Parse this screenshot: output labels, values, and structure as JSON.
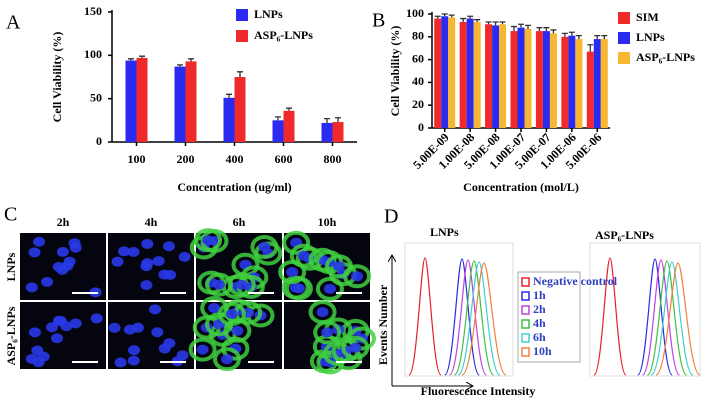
{
  "chart_data": [
    {
      "type": "bar",
      "panel": "A",
      "ylabel": "Cell Viability (%)",
      "xlabel": "Concentration (ug/ml)",
      "categories": [
        "100",
        "200",
        "400",
        "600",
        "800"
      ],
      "series": [
        {
          "name": "LNPs",
          "color": "#2a2af0",
          "values": [
            94,
            87,
            51,
            25,
            22
          ],
          "errors": [
            2,
            2,
            4,
            4,
            5
          ]
        },
        {
          "name": "ASP₆-LNPs",
          "color": "#f02a2a",
          "values": [
            97,
            93,
            75,
            36,
            23
          ],
          "errors": [
            2,
            3,
            6,
            3,
            5
          ]
        }
      ],
      "ylim": [
        0,
        150
      ],
      "yticks": [
        0,
        50,
        100,
        150
      ]
    },
    {
      "type": "bar",
      "panel": "B",
      "ylabel": "Cell Viability (%)",
      "xlabel": "Concentration (mol/L)",
      "categories": [
        "5.00E-09",
        "1.00E-08",
        "5.00E-08",
        "1.00E-07",
        "5.00E-07",
        "1.00E-06",
        "5.00E-06"
      ],
      "series": [
        {
          "name": "SIM",
          "color": "#f02a2a",
          "values": [
            96,
            93,
            91,
            85,
            85,
            80,
            67
          ],
          "errors": [
            2,
            3,
            2,
            4,
            3,
            3,
            6
          ]
        },
        {
          "name": "LNPs",
          "color": "#2a2af0",
          "values": [
            98,
            96,
            90,
            88,
            85,
            81,
            78
          ],
          "errors": [
            2,
            2,
            3,
            3,
            3,
            3,
            3
          ]
        },
        {
          "name": "ASP₆-LNPs",
          "color": "#f7b733",
          "values": [
            97,
            93,
            91,
            87,
            83,
            78,
            78
          ],
          "errors": [
            2,
            2,
            2,
            3,
            3,
            3,
            3
          ]
        }
      ],
      "ylim": [
        0,
        100
      ],
      "yticks": [
        0,
        20,
        40,
        60,
        80,
        100
      ]
    }
  ],
  "panel_c": {
    "letter": "C",
    "times": [
      "2h",
      "4h",
      "6h",
      "10h"
    ],
    "rows": [
      "LNPs",
      "ASP₆-LNPs"
    ]
  },
  "panel_d": {
    "letter": "D",
    "titles": [
      "LNPs",
      "ASP₆-LNPs"
    ],
    "ylabel": "Events Number",
    "xlabel": "Fluorescence Intensity",
    "legend": [
      {
        "name": "Negative control",
        "color": "#e8202a"
      },
      {
        "name": "1h",
        "color": "#2a2ae0"
      },
      {
        "name": "2h",
        "color": "#c040e0"
      },
      {
        "name": "4h",
        "color": "#40c040"
      },
      {
        "name": "6h",
        "color": "#40d0d0"
      },
      {
        "name": "10h",
        "color": "#f08040"
      }
    ]
  }
}
